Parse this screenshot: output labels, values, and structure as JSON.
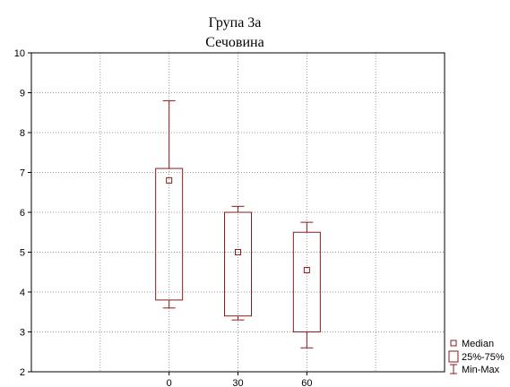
{
  "chart_data": {
    "type": "box",
    "title": "Група 3а",
    "subtitle": "Сечовина",
    "xlabel": "",
    "ylabel": "",
    "categories": [
      "0",
      "30",
      "60"
    ],
    "boxes": [
      {
        "category": "0",
        "min": 3.6,
        "q1": 3.8,
        "median": 6.8,
        "q3": 7.1,
        "max": 8.8
      },
      {
        "category": "30",
        "min": 3.3,
        "q1": 3.4,
        "median": 5.0,
        "q3": 6.0,
        "max": 6.15
      },
      {
        "category": "60",
        "min": 2.6,
        "q1": 3.0,
        "median": 4.55,
        "q3": 5.5,
        "max": 5.75
      }
    ],
    "ylim": [
      2,
      10
    ],
    "yticks": [
      2,
      3,
      4,
      5,
      6,
      7,
      8,
      9,
      10
    ],
    "grid": true,
    "legend_position": "bottom-right",
    "legend": [
      "Median",
      "25%-75%",
      "Min-Max"
    ],
    "colors": {
      "box": "#8b1a1a",
      "grid": "#9a9a9a",
      "axis": "#000000"
    }
  }
}
